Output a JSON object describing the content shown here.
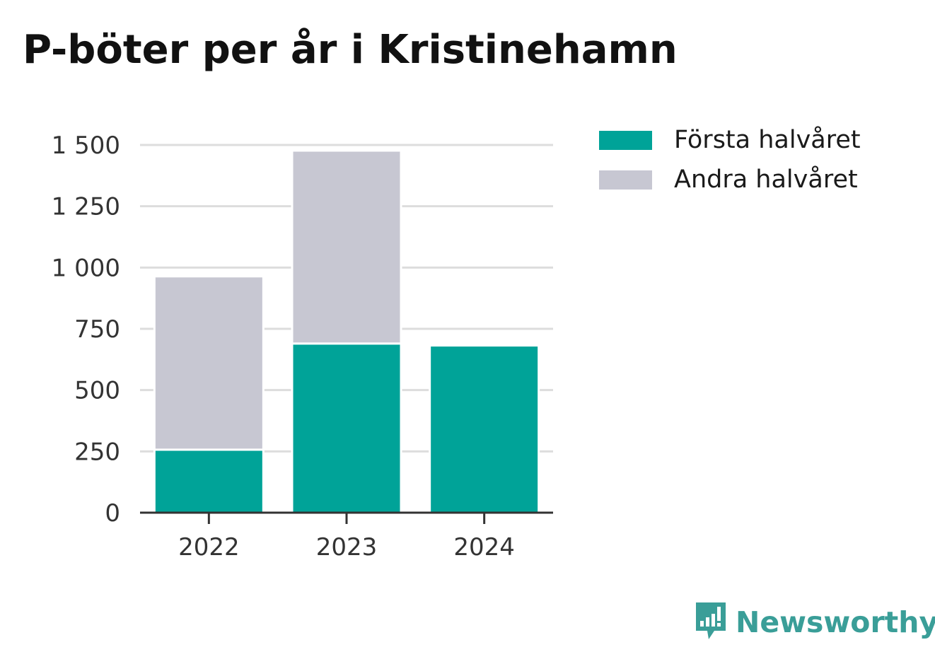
{
  "title": "P-böter per år i Kristinehamn",
  "brand": {
    "name": "Newsworthy",
    "icon": "newsworthy-logo-icon",
    "color": "#3a9e98"
  },
  "colors": {
    "first_half": "#00a398",
    "second_half": "#c7c7d2",
    "grid": "#dddddd",
    "axis": "#333333"
  },
  "chart_data": {
    "type": "bar",
    "stacked": true,
    "categories": [
      "2022",
      "2023",
      "2024"
    ],
    "series": [
      {
        "name": "Första halvåret",
        "values": [
          257,
          690,
          682
        ],
        "color": "#00a398"
      },
      {
        "name": "Andra halvåret",
        "values": [
          707,
          787,
          null
        ],
        "color": "#c7c7d2"
      }
    ],
    "ylim": [
      0,
      1500
    ],
    "yticks": [
      0,
      250,
      500,
      750,
      1000,
      1250,
      1500
    ],
    "ytick_labels": [
      "0",
      "250",
      "500",
      "750",
      "1 000",
      "1 250",
      "1 500"
    ],
    "grid": true,
    "legend_position": "top-right"
  }
}
